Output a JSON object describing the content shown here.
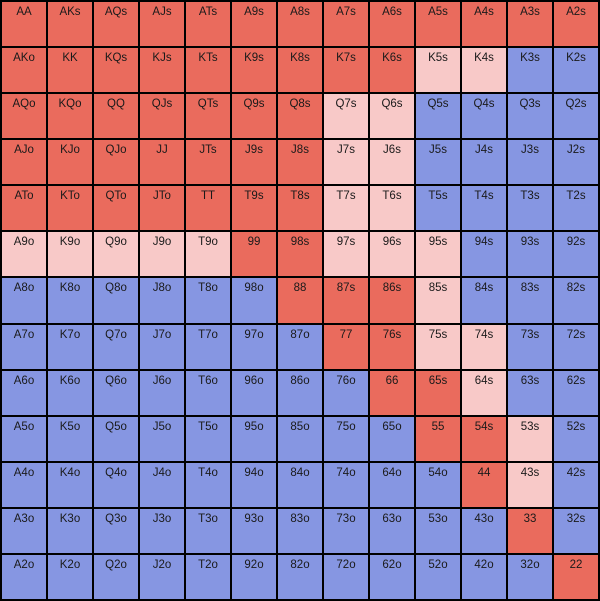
{
  "chart": {
    "type": "heatmap",
    "rows": 13,
    "cols": 13,
    "font_family": "Verdana, Geneva, sans-serif",
    "font_size": 11.5,
    "text_color": "#1a1a1a",
    "border_color": "#000000",
    "colors": {
      "red": "#ea6b5d",
      "pink": "#f8c9c8",
      "blue": "#8696e2"
    },
    "ranks": [
      "A",
      "K",
      "Q",
      "J",
      "T",
      "9",
      "8",
      "7",
      "6",
      "5",
      "4",
      "3",
      "2"
    ],
    "cells": [
      [
        {
          "l": "AA",
          "c": "red"
        },
        {
          "l": "AKs",
          "c": "red"
        },
        {
          "l": "AQs",
          "c": "red"
        },
        {
          "l": "AJs",
          "c": "red"
        },
        {
          "l": "ATs",
          "c": "red"
        },
        {
          "l": "A9s",
          "c": "red"
        },
        {
          "l": "A8s",
          "c": "red"
        },
        {
          "l": "A7s",
          "c": "red"
        },
        {
          "l": "A6s",
          "c": "red"
        },
        {
          "l": "A5s",
          "c": "red"
        },
        {
          "l": "A4s",
          "c": "red"
        },
        {
          "l": "A3s",
          "c": "red"
        },
        {
          "l": "A2s",
          "c": "red"
        }
      ],
      [
        {
          "l": "AKo",
          "c": "red"
        },
        {
          "l": "KK",
          "c": "red"
        },
        {
          "l": "KQs",
          "c": "red"
        },
        {
          "l": "KJs",
          "c": "red"
        },
        {
          "l": "KTs",
          "c": "red"
        },
        {
          "l": "K9s",
          "c": "red"
        },
        {
          "l": "K8s",
          "c": "red"
        },
        {
          "l": "K7s",
          "c": "red"
        },
        {
          "l": "K6s",
          "c": "red"
        },
        {
          "l": "K5s",
          "c": "pink"
        },
        {
          "l": "K4s",
          "c": "pink"
        },
        {
          "l": "K3s",
          "c": "blue"
        },
        {
          "l": "K2s",
          "c": "blue"
        }
      ],
      [
        {
          "l": "AQo",
          "c": "red"
        },
        {
          "l": "KQo",
          "c": "red"
        },
        {
          "l": "QQ",
          "c": "red"
        },
        {
          "l": "QJs",
          "c": "red"
        },
        {
          "l": "QTs",
          "c": "red"
        },
        {
          "l": "Q9s",
          "c": "red"
        },
        {
          "l": "Q8s",
          "c": "red"
        },
        {
          "l": "Q7s",
          "c": "pink"
        },
        {
          "l": "Q6s",
          "c": "pink"
        },
        {
          "l": "Q5s",
          "c": "blue"
        },
        {
          "l": "Q4s",
          "c": "blue"
        },
        {
          "l": "Q3s",
          "c": "blue"
        },
        {
          "l": "Q2s",
          "c": "blue"
        }
      ],
      [
        {
          "l": "AJo",
          "c": "red"
        },
        {
          "l": "KJo",
          "c": "red"
        },
        {
          "l": "QJo",
          "c": "red"
        },
        {
          "l": "JJ",
          "c": "red"
        },
        {
          "l": "JTs",
          "c": "red"
        },
        {
          "l": "J9s",
          "c": "red"
        },
        {
          "l": "J8s",
          "c": "red"
        },
        {
          "l": "J7s",
          "c": "pink"
        },
        {
          "l": "J6s",
          "c": "pink"
        },
        {
          "l": "J5s",
          "c": "blue"
        },
        {
          "l": "J4s",
          "c": "blue"
        },
        {
          "l": "J3s",
          "c": "blue"
        },
        {
          "l": "J2s",
          "c": "blue"
        }
      ],
      [
        {
          "l": "ATo",
          "c": "red"
        },
        {
          "l": "KTo",
          "c": "red"
        },
        {
          "l": "QTo",
          "c": "red"
        },
        {
          "l": "JTo",
          "c": "red"
        },
        {
          "l": "TT",
          "c": "red"
        },
        {
          "l": "T9s",
          "c": "red"
        },
        {
          "l": "T8s",
          "c": "red"
        },
        {
          "l": "T7s",
          "c": "pink"
        },
        {
          "l": "T6s",
          "c": "pink"
        },
        {
          "l": "T5s",
          "c": "blue"
        },
        {
          "l": "T4s",
          "c": "blue"
        },
        {
          "l": "T3s",
          "c": "blue"
        },
        {
          "l": "T2s",
          "c": "blue"
        }
      ],
      [
        {
          "l": "A9o",
          "c": "pink"
        },
        {
          "l": "K9o",
          "c": "pink"
        },
        {
          "l": "Q9o",
          "c": "pink"
        },
        {
          "l": "J9o",
          "c": "pink"
        },
        {
          "l": "T9o",
          "c": "pink"
        },
        {
          "l": "99",
          "c": "red"
        },
        {
          "l": "98s",
          "c": "red"
        },
        {
          "l": "97s",
          "c": "pink"
        },
        {
          "l": "96s",
          "c": "pink"
        },
        {
          "l": "95s",
          "c": "pink"
        },
        {
          "l": "94s",
          "c": "blue"
        },
        {
          "l": "93s",
          "c": "blue"
        },
        {
          "l": "92s",
          "c": "blue"
        }
      ],
      [
        {
          "l": "A8o",
          "c": "blue"
        },
        {
          "l": "K8o",
          "c": "blue"
        },
        {
          "l": "Q8o",
          "c": "blue"
        },
        {
          "l": "J8o",
          "c": "blue"
        },
        {
          "l": "T8o",
          "c": "blue"
        },
        {
          "l": "98o",
          "c": "blue"
        },
        {
          "l": "88",
          "c": "red"
        },
        {
          "l": "87s",
          "c": "red"
        },
        {
          "l": "86s",
          "c": "red"
        },
        {
          "l": "85s",
          "c": "pink"
        },
        {
          "l": "84s",
          "c": "blue"
        },
        {
          "l": "83s",
          "c": "blue"
        },
        {
          "l": "82s",
          "c": "blue"
        }
      ],
      [
        {
          "l": "A7o",
          "c": "blue"
        },
        {
          "l": "K7o",
          "c": "blue"
        },
        {
          "l": "Q7o",
          "c": "blue"
        },
        {
          "l": "J7o",
          "c": "blue"
        },
        {
          "l": "T7o",
          "c": "blue"
        },
        {
          "l": "97o",
          "c": "blue"
        },
        {
          "l": "87o",
          "c": "blue"
        },
        {
          "l": "77",
          "c": "red"
        },
        {
          "l": "76s",
          "c": "red"
        },
        {
          "l": "75s",
          "c": "pink"
        },
        {
          "l": "74s",
          "c": "pink"
        },
        {
          "l": "73s",
          "c": "blue"
        },
        {
          "l": "72s",
          "c": "blue"
        }
      ],
      [
        {
          "l": "A6o",
          "c": "blue"
        },
        {
          "l": "K6o",
          "c": "blue"
        },
        {
          "l": "Q6o",
          "c": "blue"
        },
        {
          "l": "J6o",
          "c": "blue"
        },
        {
          "l": "T6o",
          "c": "blue"
        },
        {
          "l": "96o",
          "c": "blue"
        },
        {
          "l": "86o",
          "c": "blue"
        },
        {
          "l": "76o",
          "c": "blue"
        },
        {
          "l": "66",
          "c": "red"
        },
        {
          "l": "65s",
          "c": "red"
        },
        {
          "l": "64s",
          "c": "pink"
        },
        {
          "l": "63s",
          "c": "blue"
        },
        {
          "l": "62s",
          "c": "blue"
        }
      ],
      [
        {
          "l": "A5o",
          "c": "blue"
        },
        {
          "l": "K5o",
          "c": "blue"
        },
        {
          "l": "Q5o",
          "c": "blue"
        },
        {
          "l": "J5o",
          "c": "blue"
        },
        {
          "l": "T5o",
          "c": "blue"
        },
        {
          "l": "95o",
          "c": "blue"
        },
        {
          "l": "85o",
          "c": "blue"
        },
        {
          "l": "75o",
          "c": "blue"
        },
        {
          "l": "65o",
          "c": "blue"
        },
        {
          "l": "55",
          "c": "red"
        },
        {
          "l": "54s",
          "c": "red"
        },
        {
          "l": "53s",
          "c": "pink"
        },
        {
          "l": "52s",
          "c": "blue"
        }
      ],
      [
        {
          "l": "A4o",
          "c": "blue"
        },
        {
          "l": "K4o",
          "c": "blue"
        },
        {
          "l": "Q4o",
          "c": "blue"
        },
        {
          "l": "J4o",
          "c": "blue"
        },
        {
          "l": "T4o",
          "c": "blue"
        },
        {
          "l": "94o",
          "c": "blue"
        },
        {
          "l": "84o",
          "c": "blue"
        },
        {
          "l": "74o",
          "c": "blue"
        },
        {
          "l": "64o",
          "c": "blue"
        },
        {
          "l": "54o",
          "c": "blue"
        },
        {
          "l": "44",
          "c": "red"
        },
        {
          "l": "43s",
          "c": "pink"
        },
        {
          "l": "42s",
          "c": "blue"
        }
      ],
      [
        {
          "l": "A3o",
          "c": "blue"
        },
        {
          "l": "K3o",
          "c": "blue"
        },
        {
          "l": "Q3o",
          "c": "blue"
        },
        {
          "l": "J3o",
          "c": "blue"
        },
        {
          "l": "T3o",
          "c": "blue"
        },
        {
          "l": "93o",
          "c": "blue"
        },
        {
          "l": "83o",
          "c": "blue"
        },
        {
          "l": "73o",
          "c": "blue"
        },
        {
          "l": "63o",
          "c": "blue"
        },
        {
          "l": "53o",
          "c": "blue"
        },
        {
          "l": "43o",
          "c": "blue"
        },
        {
          "l": "33",
          "c": "red"
        },
        {
          "l": "32s",
          "c": "blue"
        }
      ],
      [
        {
          "l": "A2o",
          "c": "blue"
        },
        {
          "l": "K2o",
          "c": "blue"
        },
        {
          "l": "Q2o",
          "c": "blue"
        },
        {
          "l": "J2o",
          "c": "blue"
        },
        {
          "l": "T2o",
          "c": "blue"
        },
        {
          "l": "92o",
          "c": "blue"
        },
        {
          "l": "82o",
          "c": "blue"
        },
        {
          "l": "72o",
          "c": "blue"
        },
        {
          "l": "62o",
          "c": "blue"
        },
        {
          "l": "52o",
          "c": "blue"
        },
        {
          "l": "42o",
          "c": "blue"
        },
        {
          "l": "32o",
          "c": "blue"
        },
        {
          "l": "22",
          "c": "red"
        }
      ]
    ]
  }
}
